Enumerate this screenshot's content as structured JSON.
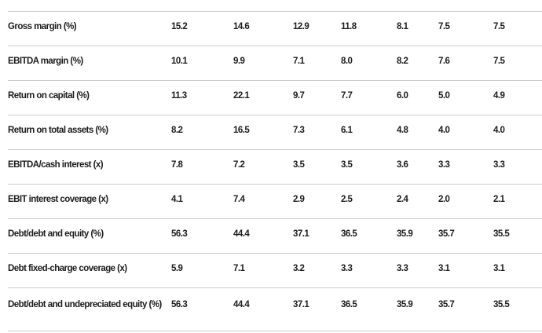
{
  "table": {
    "name": "financial-ratios-table",
    "columns_count": 7,
    "rows": [
      {
        "label": "Gross margin (%)",
        "values": [
          "15.2",
          "14.6",
          "12.9",
          "11.8",
          "8.1",
          "7.5",
          "7.5"
        ]
      },
      {
        "label": "EBITDA margin (%)",
        "values": [
          "10.1",
          "9.9",
          "7.1",
          "8.0",
          "8.2",
          "7.6",
          "7.5"
        ]
      },
      {
        "label": "Return on capital (%)",
        "values": [
          "11.3",
          "22.1",
          "9.7",
          "7.7",
          "6.0",
          "5.0",
          "4.9"
        ]
      },
      {
        "label": "Return on total assets (%)",
        "values": [
          "8.2",
          "16.5",
          "7.3",
          "6.1",
          "4.8",
          "4.0",
          "4.0"
        ]
      },
      {
        "label": "EBITDA/cash interest (x)",
        "values": [
          "7.8",
          "7.2",
          "3.5",
          "3.5",
          "3.6",
          "3.3",
          "3.3"
        ]
      },
      {
        "label": "EBIT interest coverage (x)",
        "values": [
          "4.1",
          "7.4",
          "2.9",
          "2.5",
          "2.4",
          "2.0",
          "2.1"
        ]
      },
      {
        "label": "Debt/debt and equity (%)",
        "values": [
          "56.3",
          "44.4",
          "37.1",
          "36.5",
          "35.9",
          "35.7",
          "35.5"
        ]
      },
      {
        "label": "Debt fixed-charge coverage (x)",
        "values": [
          "5.9",
          "7.1",
          "3.2",
          "3.3",
          "3.3",
          "3.1",
          "3.1"
        ]
      },
      {
        "label": "Debt/debt and undepreciated equity (%)",
        "values": [
          "56.3",
          "44.4",
          "37.1",
          "36.5",
          "35.9",
          "35.7",
          "35.5"
        ]
      }
    ],
    "colors": {
      "background": "#ffffff",
      "divider": "#cbcbcb",
      "text": "#1c1c1c"
    }
  }
}
